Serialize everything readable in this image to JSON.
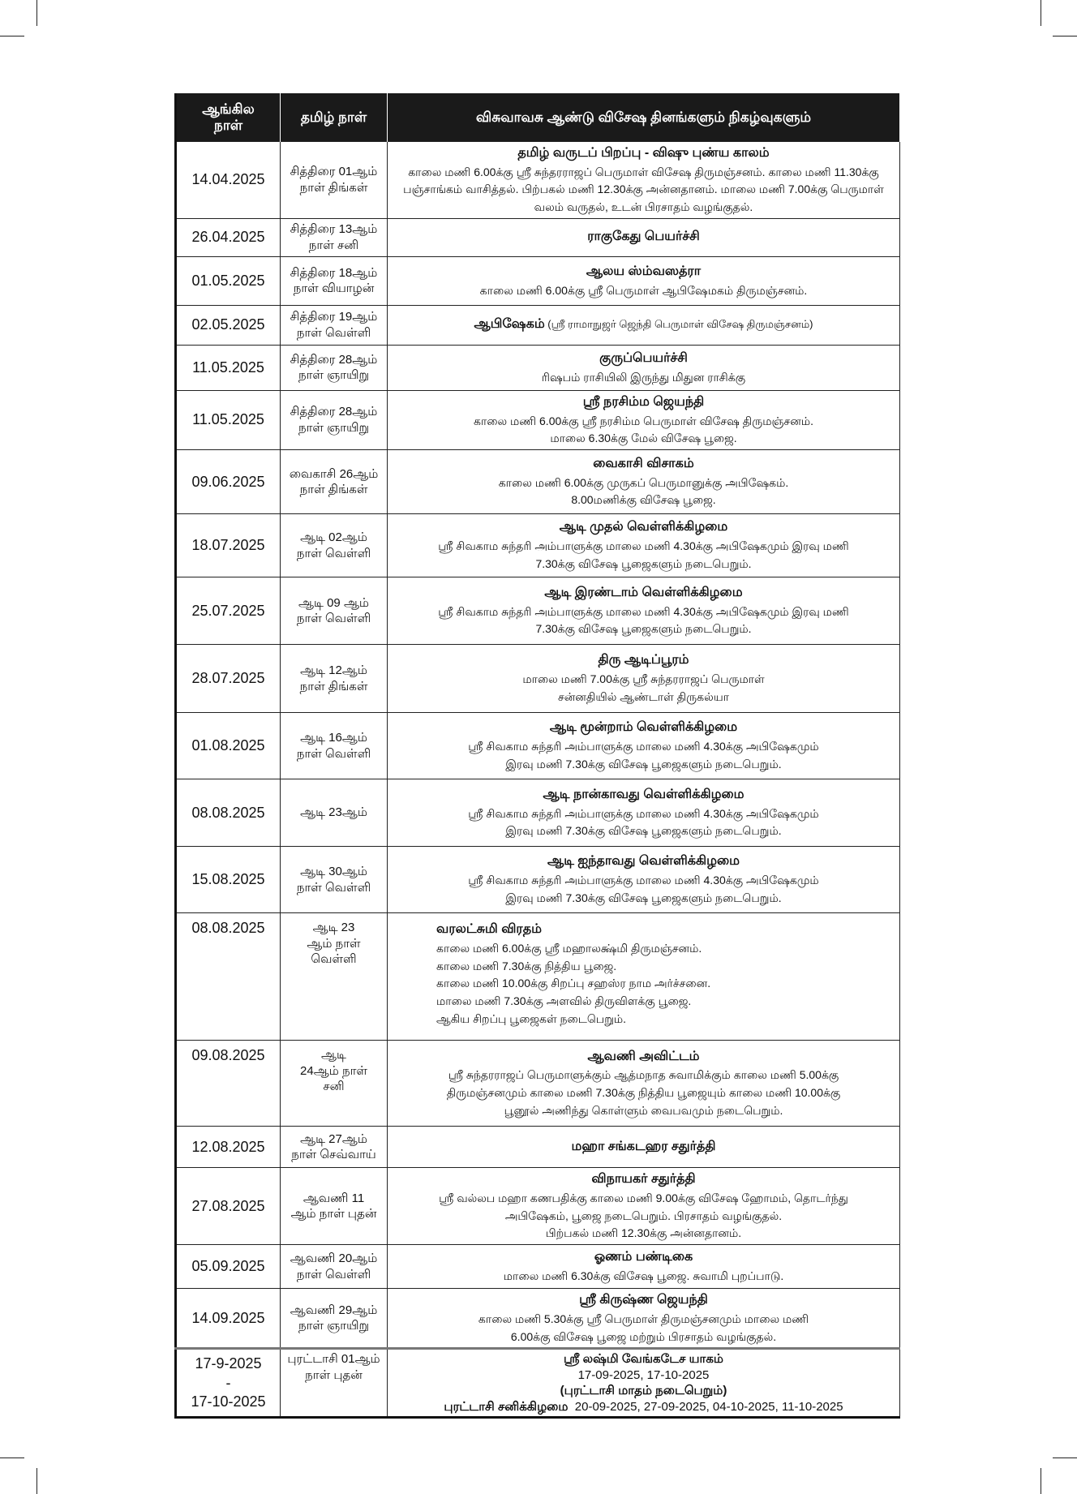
{
  "header": {
    "col_english_date": "ஆங்கில நாள்",
    "col_tamil_date": "தமிழ் நாள்",
    "col_events": "விசுவாவசு ஆண்டு விசேஷ தினங்களும் நிகழ்வுகளும்"
  },
  "rows": [
    {
      "date": "14.04.2025",
      "tday": [
        "சித்திரை 01ஆம்",
        "நாள் திங்கள்"
      ],
      "title": "தமிழ் வருடப் பிறப்பு - விஷு புண்ய காலம்",
      "lines": [
        "காலை மணி 6.00க்கு ஸ்ரீ சுந்தரராஜப் பெருமாள் விசேஷ திருமஞ்சனம். காலை மணி 11.30க்கு",
        "பஞ்சாங்கம் வாசித்தல். பிற்பகல் மணி 12.30க்கு அன்னதானம். மாலை மணி 7.00க்கு பெருமாள்",
        "வலம் வருதல், உடன் பிரசாதம் வழங்குதல்."
      ]
    },
    {
      "date": "26.04.2025",
      "tday": [
        "சித்திரை 13ஆம்",
        "நாள் சனி"
      ],
      "title": "ராகுகேது பெயர்ச்சி",
      "lines": []
    },
    {
      "date": "01.05.2025",
      "tday": [
        "சித்திரை 18ஆம்",
        "நாள் வியாழன்"
      ],
      "title": "ஆலய ஸ்ம்வஸத்ரா",
      "lines": [
        "காலை மணி 6.00க்கு ஸ்ரீ பெருமாள் ஆபிஷேமகம்  திருமஞ்சனம்."
      ]
    },
    {
      "date": "02.05.2025",
      "tday": [
        "சித்திரை 19ஆம்",
        "நாள் வெள்ளி"
      ],
      "title": "ஆபிஷேகம்",
      "title_suffix": " (ஸ்ரீ ராமாநுஜர் ஜெந்தி பெருமாள் விசேஷ திருமஞ்சனம்)",
      "lines": []
    },
    {
      "date": "11.05.2025",
      "tday": [
        "சித்திரை 28ஆம்",
        "நாள் ஞாயிறு"
      ],
      "title": "குருப்பெயர்ச்சி",
      "lines": [
        "ரிஷபம் ராசியிலி இருந்து மிதுன ராசிக்கு"
      ]
    },
    {
      "date": "11.05.2025",
      "tday": [
        "சித்திரை 28ஆம்",
        "நாள் ஞாயிறு"
      ],
      "title": "ஸ்ரீ நரசிம்ம ஜெயந்தி",
      "lines": [
        "காலை மணி 6.00க்கு ஸ்ரீ நரசிம்ம பெருமாள் விசேஷ திருமஞ்சனம்.",
        "மாலை 6.30க்கு மேல் விசேஷ பூஜை."
      ]
    },
    {
      "date": "09.06.2025",
      "tday": [
        "வைகாசி 26ஆம்",
        "நாள் திங்கள்"
      ],
      "title": "வைகாசி விசாகம்",
      "lines": [
        "காலை மணி 6.00க்கு முருகப் பெருமானுக்கு அபிஷேகம்.",
        "8.00மணிக்கு விசேஷ பூஜை."
      ]
    },
    {
      "date": "18.07.2025",
      "tday": [
        "ஆடி 02ஆம்",
        "நாள் வெள்ளி"
      ],
      "title": "ஆடி முதல் வெள்ளிக்கிழமை",
      "lines": [
        "ஸ்ரீ சிவகாம சுந்தரி அம்பாளுக்கு மாலை மணி 4.30க்கு அபிஷேகமும் இரவு மணி",
        "7.30க்கு விசேஷ பூஜைகளும் நடைபெறும்."
      ]
    },
    {
      "date": "25.07.2025",
      "tday": [
        "ஆடி 09 ஆம்",
        "நாள் வெள்ளி"
      ],
      "title": "ஆடி இரண்டாம் வெள்ளிக்கிழமை",
      "lines": [
        "ஸ்ரீ சிவகாம சுந்தரி அம்பாளுக்கு மாலை மணி 4.30க்கு அபிஷேகமும் இரவு மணி",
        "7.30க்கு விசேஷ பூஜைகளும் நடைபெறும்."
      ]
    },
    {
      "date": "28.07.2025",
      "tday": [
        "ஆடி 12ஆம்",
        "நாள் திங்கள்"
      ],
      "title": "திரு ஆடிப்பூரம்",
      "lines": [
        "மாலை மணி 7.00க்கு ஸ்ரீ சுந்தரராஜப் பெருமாள்",
        "சன்னதியில் ஆண்டாள் திருகல்யா"
      ]
    },
    {
      "date": "01.08.2025",
      "tday": [
        "ஆடி 16ஆம்",
        "நாள் வெள்ளி"
      ],
      "title": "ஆடி மூன்றாம் வெள்ளிக்கிழமை",
      "lines": [
        "ஸ்ரீ சிவகாம சுந்தரி அம்பாளுக்கு மாலை மணி 4.30க்கு அபிஷேகமும்",
        "இரவு மணி 7.30க்கு விசேஷ பூஜைகளும் நடைபெறும்."
      ]
    },
    {
      "date": "08.08.2025",
      "tday": [
        "ஆடி 23ஆம்"
      ],
      "title": "ஆடி நான்காவது வெள்ளிக்கிழமை",
      "lines": [
        "ஸ்ரீ சிவகாம சுந்தரி அம்பாளுக்கு மாலை மணி 4.30க்கு அபிஷேகமும்",
        "இரவு மணி 7.30க்கு விசேஷ பூஜைகளும் நடைபெறும்."
      ]
    },
    {
      "date": "15.08.2025",
      "tday": [
        "ஆடி 30ஆம்",
        "நாள் வெள்ளி"
      ],
      "title": "ஆடி ஐந்தாவது வெள்ளிக்கிழமை",
      "lines": [
        "ஸ்ரீ சிவகாம சுந்தரி அம்பாளுக்கு மாலை மணி 4.30க்கு அபிஷேகமும்",
        "இரவு மணி 7.30க்கு விசேஷ பூஜைகளும் நடைபெறும்."
      ]
    },
    {
      "date": "08.08.2025",
      "tday": [
        "ஆடி 23",
        "ஆம் நாள்",
        "வெள்ளி"
      ],
      "title": "வரலட்சுமி விரதம்",
      "lines": [
        "காலை மணி 6.00க்கு ஸ்ரீ மஹாலக்ஷ்மி திருமஞ்சனம்.",
        "காலை மணி 7.30க்கு நித்திய பூஜை.",
        "காலை மணி 10.00க்கு சிறப்பு சஹஸ்ர நாம அர்ச்சனை.",
        "மாலை மணி 7.30க்கு அளவில் திருவிளக்கு பூஜை.",
        "ஆகிய சிறப்பு பூஜைகள் நடைபெறும்."
      ]
    },
    {
      "date": "09.08.2025",
      "tday": [
        "ஆடி",
        "24ஆம் நாள்",
        "சனி"
      ],
      "title": "ஆவணி அவிட்டம்",
      "lines": [
        "ஸ்ரீ சுந்தரராஜப் பெருமாளுக்கும் ஆத்மநாத சுவாமிக்கும் காலை மணி 5.00க்கு",
        "திருமஞ்சனமும் காலை மணி 7.30க்கு நித்திய பூஜையும் காலை மணி 10.00க்கு",
        "பூனூல் அணிந்து கொள்ளும் வைபவமும் நடைபெறும்."
      ]
    },
    {
      "date": "12.08.2025",
      "tday": [
        "ஆடி 27ஆம்",
        "நாள் செவ்வாய்"
      ],
      "title": "மஹா சங்கடஹர சதுர்த்தி",
      "lines": []
    },
    {
      "date": "27.08.2025",
      "tday": [
        "ஆவணி 11",
        "ஆம் நாள் புதன்"
      ],
      "title": "விநாயகர் சதுர்த்தி",
      "lines": [
        "ஸ்ரீ வல்லப மஹா கணபதிக்கு காலை மணி 9.00க்கு விசேஷ ஹோமம், தொடர்ந்து",
        "அபிஷேகம், பூஜை நடைபெறும். பிரசாதம் வழங்குதல்.",
        "பிற்பகல் மணி 12.30க்கு அன்னதானம்."
      ]
    },
    {
      "date": "05.09.2025",
      "tday": [
        "ஆவணி 20ஆம்",
        "நாள் வெள்ளி"
      ],
      "title": "ஓணம் பண்டிகை",
      "lines": [
        "மாலை மணி 6.30க்கு விசேஷ பூஜை. சுவாமி புறப்பாடு."
      ]
    },
    {
      "date": "14.09.2025",
      "tday": [
        "ஆவணி 29ஆம்",
        "நாள் ஞாயிறு"
      ],
      "title": "ஸ்ரீ கிருஷ்ண ஜெயந்தி",
      "lines": [
        "காலை மணி 5.30க்கு ஸ்ரீ பெருமாள் திருமஞ்சனமும் மாலை மணி",
        "6.00க்கு விசேஷ பூஜை மற்றும் பிரசாதம் வழங்குதல்."
      ]
    }
  ],
  "last_row": {
    "date_from": "17-9-2025",
    "date_sep": "-",
    "date_to": "17-10-2025",
    "tday": [
      "புரட்டாசி 01ஆம்",
      "நாள் புதன்"
    ],
    "title": "ஸ்ரீ லஷ்மி வேங்கடேச யாகம்",
    "dates": "17-09-2025, 17-10-2025",
    "note": "(புரட்டாசி மாதம் நடைபெறும்)",
    "saturday_label": "புரட்டாசி சனிக்கிழமை",
    "saturday_dates": "  20-09-2025, 27-09-2025, 04-10-2025, 11-10-2025"
  }
}
